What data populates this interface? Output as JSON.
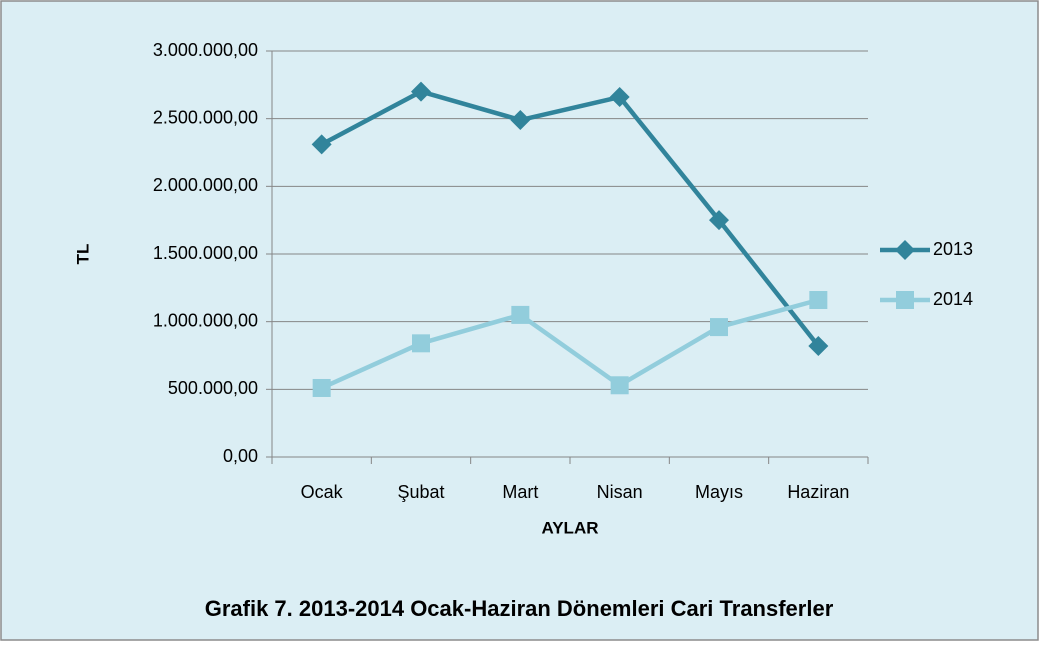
{
  "chart_data": {
    "type": "line",
    "title": "Grafik 7. 2013-2014 Ocak-Haziran Dönemleri Cari Transferler",
    "x_label": "AYLAR",
    "y_label": "TL",
    "categories": [
      "Ocak",
      "Şubat",
      "Mart",
      "Nisan",
      "Mayıs",
      "Haziran"
    ],
    "series": [
      {
        "name": "2013",
        "color": "#31849b",
        "marker": "diamond",
        "values": [
          2310000,
          2700000,
          2490000,
          2660000,
          1750000,
          820000
        ]
      },
      {
        "name": "2014",
        "color": "#92cddc",
        "marker": "square",
        "values": [
          510000,
          840000,
          1050000,
          530000,
          960000,
          1160000
        ]
      }
    ],
    "ylim": [
      0,
      3000000
    ],
    "yticks": [
      {
        "value": 0,
        "label": "0,00"
      },
      {
        "value": 500000,
        "label": "500.000,00"
      },
      {
        "value": 1000000,
        "label": "1.000.000,00"
      },
      {
        "value": 1500000,
        "label": "1.500.000,00"
      },
      {
        "value": 2000000,
        "label": "2.000.000,00"
      },
      {
        "value": 2500000,
        "label": "2.500.000,00"
      },
      {
        "value": 3000000,
        "label": "3.000.000,00"
      }
    ],
    "grid": true,
    "legend_position": "right"
  }
}
